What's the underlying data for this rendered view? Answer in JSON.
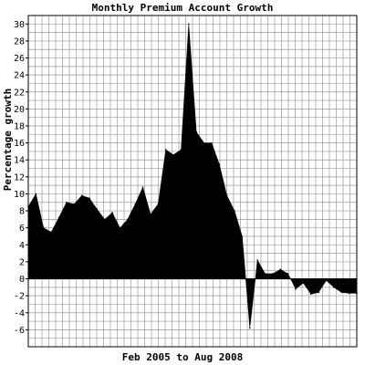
{
  "chart_data": {
    "type": "area",
    "title": "Monthly Premium Account Growth",
    "xlabel": "Feb 2005 to Aug 2008",
    "ylabel": "Percentage growth",
    "ylim": [
      -8,
      31
    ],
    "xlim": [
      0,
      43
    ],
    "yticks": [
      -6,
      -4,
      -2,
      0,
      2,
      4,
      6,
      8,
      10,
      12,
      14,
      16,
      18,
      20,
      22,
      24,
      26,
      28,
      30
    ],
    "grid": true,
    "grid_y_step": 1,
    "grid_x_minor_count": 48,
    "x": [
      0,
      1,
      2,
      3,
      4,
      5,
      6,
      7,
      8,
      9,
      10,
      11,
      12,
      13,
      14,
      15,
      16,
      17,
      18,
      19,
      20,
      21,
      22,
      23,
      24,
      25,
      26,
      27,
      28,
      29,
      30,
      31,
      32,
      33,
      34,
      35,
      36,
      37,
      38,
      39,
      40,
      41,
      42,
      43
    ],
    "values": [
      8.5,
      10.0,
      6.0,
      5.5,
      7.2,
      9.0,
      8.8,
      9.8,
      9.5,
      8.2,
      7.0,
      7.8,
      6.0,
      7.0,
      8.8,
      10.8,
      7.6,
      8.8,
      15.2,
      14.6,
      15.2,
      30.0,
      17.3,
      16.0,
      16.0,
      13.5,
      9.8,
      8.0,
      5.0,
      -5.8,
      2.2,
      0.6,
      0.6,
      1.1,
      0.6,
      -1.2,
      -0.5,
      -1.8,
      -1.6,
      -0.2,
      -1.0,
      -1.6,
      -1.7,
      -1.7
    ],
    "fill_color": "#000000",
    "grid_color": "#9a9a9a",
    "background_color": "#ffffff"
  }
}
